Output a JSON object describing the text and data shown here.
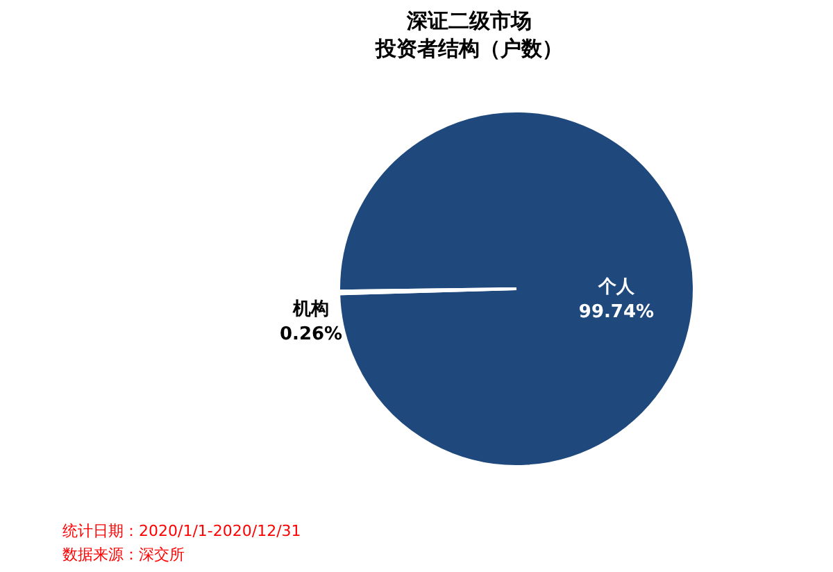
{
  "chart_data": {
    "type": "pie",
    "title": "深证二级市场",
    "subtitle": "投资者结构（户数）",
    "categories": [
      "个人",
      "机构"
    ],
    "values": [
      99.74,
      0.26
    ],
    "colors": [
      "#1f497d",
      "#ffffff"
    ],
    "value_labels": [
      "99.74%",
      "0.26%"
    ],
    "annotations": [
      "统计日期：2020/1/1-2020/12/31",
      "数据来源：深交所"
    ]
  }
}
